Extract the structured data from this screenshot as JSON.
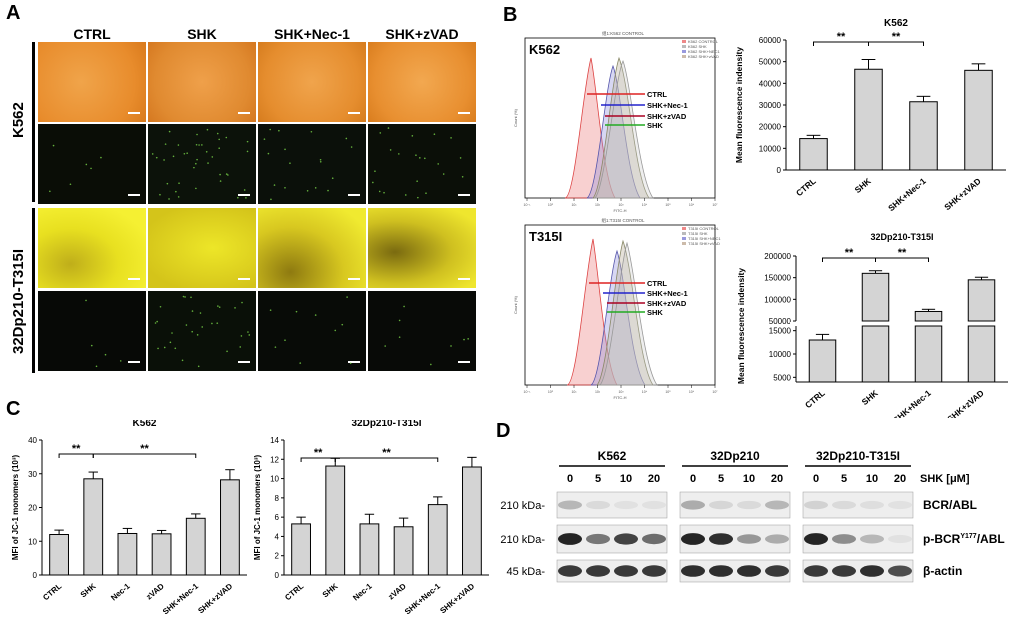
{
  "panelA": {
    "letter": "A",
    "conditions": [
      "CTRL",
      "SHK",
      "SHK+Nec-1",
      "SHK+zVAD"
    ],
    "cell_lines": [
      "K562",
      "32Dp210-T315I"
    ]
  },
  "panelB": {
    "letter": "B",
    "histograms": [
      {
        "label": "K562",
        "title": "组1:K562 CONTROL",
        "legend_entries": [
          "K562 CONTROL",
          "K562 SHK",
          "K562 SHK+NEC1",
          "K562 SHK+zVAD"
        ],
        "markers": [
          "CTRL",
          "SHK+Nec-1",
          "SHK+zVAD",
          "SHK"
        ],
        "xlabel": "FITC-H",
        "ylabel": "Count (%)"
      },
      {
        "label": "T315I",
        "title": "组1:T315I CONTROL",
        "legend_entries": [
          "T315I CONTROL",
          "T315I SHK",
          "T315I SHK+NEC1",
          "T315I SHK+zVAD"
        ],
        "markers": [
          "CTRL",
          "SHK+Nec-1",
          "SHK+zVAD",
          "SHK"
        ],
        "xlabel": "FITC-H",
        "ylabel": "Count (%)"
      }
    ],
    "x_ticks": [
      "10⁻¹",
      "10⁰",
      "10¹",
      "10²",
      "10³",
      "10⁴",
      "10⁵",
      "10⁶",
      "10⁷"
    ]
  },
  "panelC": {
    "letter": "C"
  },
  "panelD": {
    "letter": "D",
    "cell_lines": [
      "K562",
      "32Dp210",
      "32Dp210-T315I"
    ],
    "doses": [
      "0",
      "5",
      "10",
      "20"
    ],
    "dose_label": "SHK [μM]",
    "rows": [
      {
        "marker": "210 kDa-",
        "label": "BCR/ABL",
        "sup": ""
      },
      {
        "marker": "210 kDa-",
        "label": "p-BCR",
        "sup": "Y177",
        "suffix": "/ABL"
      },
      {
        "marker": "45 kDa-",
        "label": "β-actin",
        "sup": ""
      }
    ]
  },
  "chart_data": [
    {
      "id": "B-K562-bar",
      "type": "bar",
      "title": "K562",
      "categories": [
        "CTRL",
        "SHK",
        "SHK+Nec-1",
        "SHK+zVAD"
      ],
      "values": [
        14500,
        46500,
        31500,
        46000
      ],
      "errors": [
        1500,
        4500,
        2500,
        3000
      ],
      "ylabel": "Mean fluorescence indensity",
      "ylim": [
        0,
        60000
      ],
      "yticks": [
        0,
        10000,
        20000,
        30000,
        40000,
        50000,
        60000
      ],
      "significance": [
        {
          "pair": [
            0,
            1
          ],
          "label": "**"
        },
        {
          "pair": [
            1,
            2
          ],
          "label": "**"
        }
      ]
    },
    {
      "id": "B-T315I-bar",
      "type": "bar",
      "title": "32Dp210-T315I",
      "categories": [
        "CTRL",
        "SHK",
        "SHK+Nec-1",
        "SHK+zVAD"
      ],
      "values": [
        13000,
        160000,
        72000,
        145000
      ],
      "errors": [
        1200,
        6000,
        5000,
        6000
      ],
      "ylabel": "Mean fluorescence indensity",
      "axis_break": true,
      "upper_ylim": [
        50000,
        200000
      ],
      "upper_yticks": [
        50000,
        100000,
        150000,
        200000
      ],
      "lower_ylim": [
        4000,
        16000
      ],
      "lower_yticks": [
        5000,
        10000,
        15000
      ],
      "significance": [
        {
          "pair": [
            0,
            1
          ],
          "label": "**"
        },
        {
          "pair": [
            1,
            2
          ],
          "label": "**"
        }
      ]
    },
    {
      "id": "C-K562-bar",
      "type": "bar",
      "title": "K562",
      "categories": [
        "CTRL",
        "SHK",
        "Nec-1",
        "zVAD",
        "SHK+Nec-1",
        "SHK+zVAD"
      ],
      "values": [
        12,
        28.5,
        12.3,
        12.2,
        16.8,
        28.2
      ],
      "errors": [
        1.3,
        2,
        1.5,
        1,
        1.3,
        3
      ],
      "ylabel": "MFI of JC-1 monomers (10³)",
      "ylim": [
        0,
        40
      ],
      "yticks": [
        0,
        10,
        20,
        30,
        40
      ],
      "significance": [
        {
          "pair": [
            0,
            1
          ],
          "label": "**"
        },
        {
          "pair": [
            1,
            4
          ],
          "label": "**"
        }
      ]
    },
    {
      "id": "C-T315I-bar",
      "type": "bar",
      "title": "32Dp210-T315I",
      "categories": [
        "CTRL",
        "SHK",
        "Nec-1",
        "zVAD",
        "SHK+Nec-1",
        "SHK+zVAD"
      ],
      "values": [
        5.3,
        11.3,
        5.3,
        5,
        7.3,
        11.2
      ],
      "errors": [
        0.7,
        0.8,
        1,
        0.9,
        0.8,
        1
      ],
      "ylabel": "MFI of JC-1 monomers (10³)",
      "ylim": [
        0,
        14
      ],
      "yticks": [
        0,
        2,
        4,
        6,
        8,
        10,
        12,
        14
      ],
      "significance": [
        {
          "pair": [
            0,
            1
          ],
          "label": "**"
        },
        {
          "pair": [
            1,
            4
          ],
          "label": "**"
        }
      ]
    }
  ]
}
